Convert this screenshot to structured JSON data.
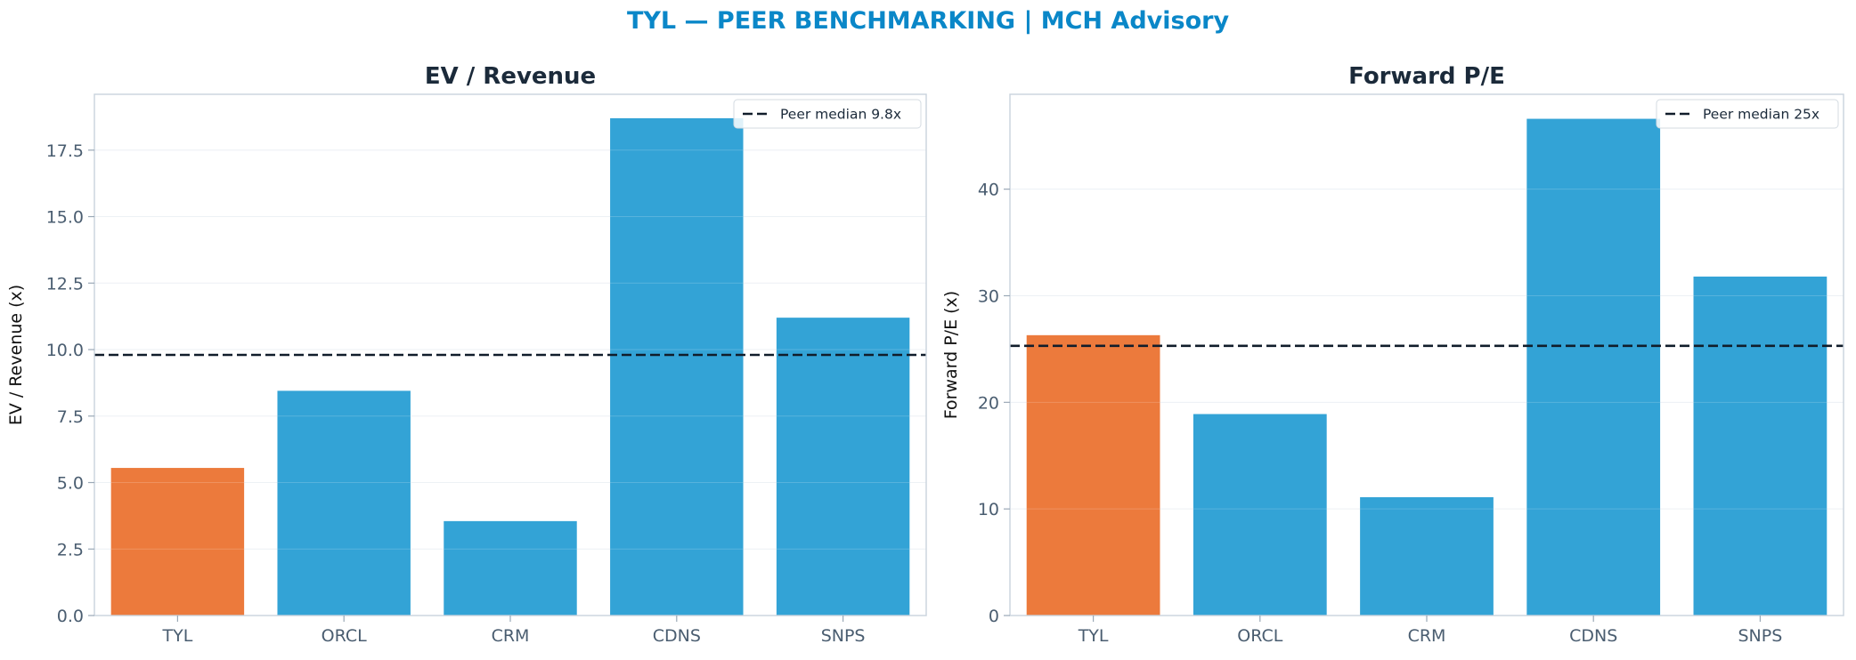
{
  "figure": {
    "title": "TYL — PEER BENCHMARKING | MCH Advisory",
    "colors": {
      "highlight": "#ec7a3c",
      "peer": "#33a3d6",
      "median_line": "#111d2b",
      "frame": "#c9d3dd",
      "title": "#0a87c8"
    }
  },
  "chart_data": [
    {
      "type": "bar",
      "title": "EV / Revenue",
      "xlabel": "",
      "ylabel": "EV / Revenue (x)",
      "categories": [
        "TYL",
        "ORCL",
        "CRM",
        "CDNS",
        "SNPS"
      ],
      "values": [
        5.55,
        8.45,
        3.55,
        18.7,
        11.2
      ],
      "highlight": "TYL",
      "ylim": [
        0,
        19.6
      ],
      "yticks": [
        0,
        2.5,
        5,
        7.5,
        10,
        12.5,
        15,
        17.5
      ],
      "ytick_labels": [
        "0.0",
        "2.5",
        "5.0",
        "7.5",
        "10.0",
        "12.5",
        "15.0",
        "17.5"
      ],
      "reference_line": {
        "value": 9.8,
        "style": "dashed",
        "label": "Peer median 9.8x"
      },
      "legend_position": "top-right",
      "grid": "horizontal"
    },
    {
      "type": "bar",
      "title": "Forward P/E",
      "xlabel": "",
      "ylabel": "Forward P/E (x)",
      "categories": [
        "TYL",
        "ORCL",
        "CRM",
        "CDNS",
        "SNPS"
      ],
      "values": [
        26.3,
        18.9,
        11.1,
        46.6,
        31.8
      ],
      "highlight": "TYL",
      "ylim": [
        0,
        48.9
      ],
      "yticks": [
        0,
        10,
        20,
        30,
        40
      ],
      "ytick_labels": [
        "0",
        "10",
        "20",
        "30",
        "40"
      ],
      "reference_line": {
        "value": 25.3,
        "style": "dashed",
        "label": "Peer median 25x"
      },
      "legend_position": "top-right",
      "grid": "horizontal"
    }
  ]
}
